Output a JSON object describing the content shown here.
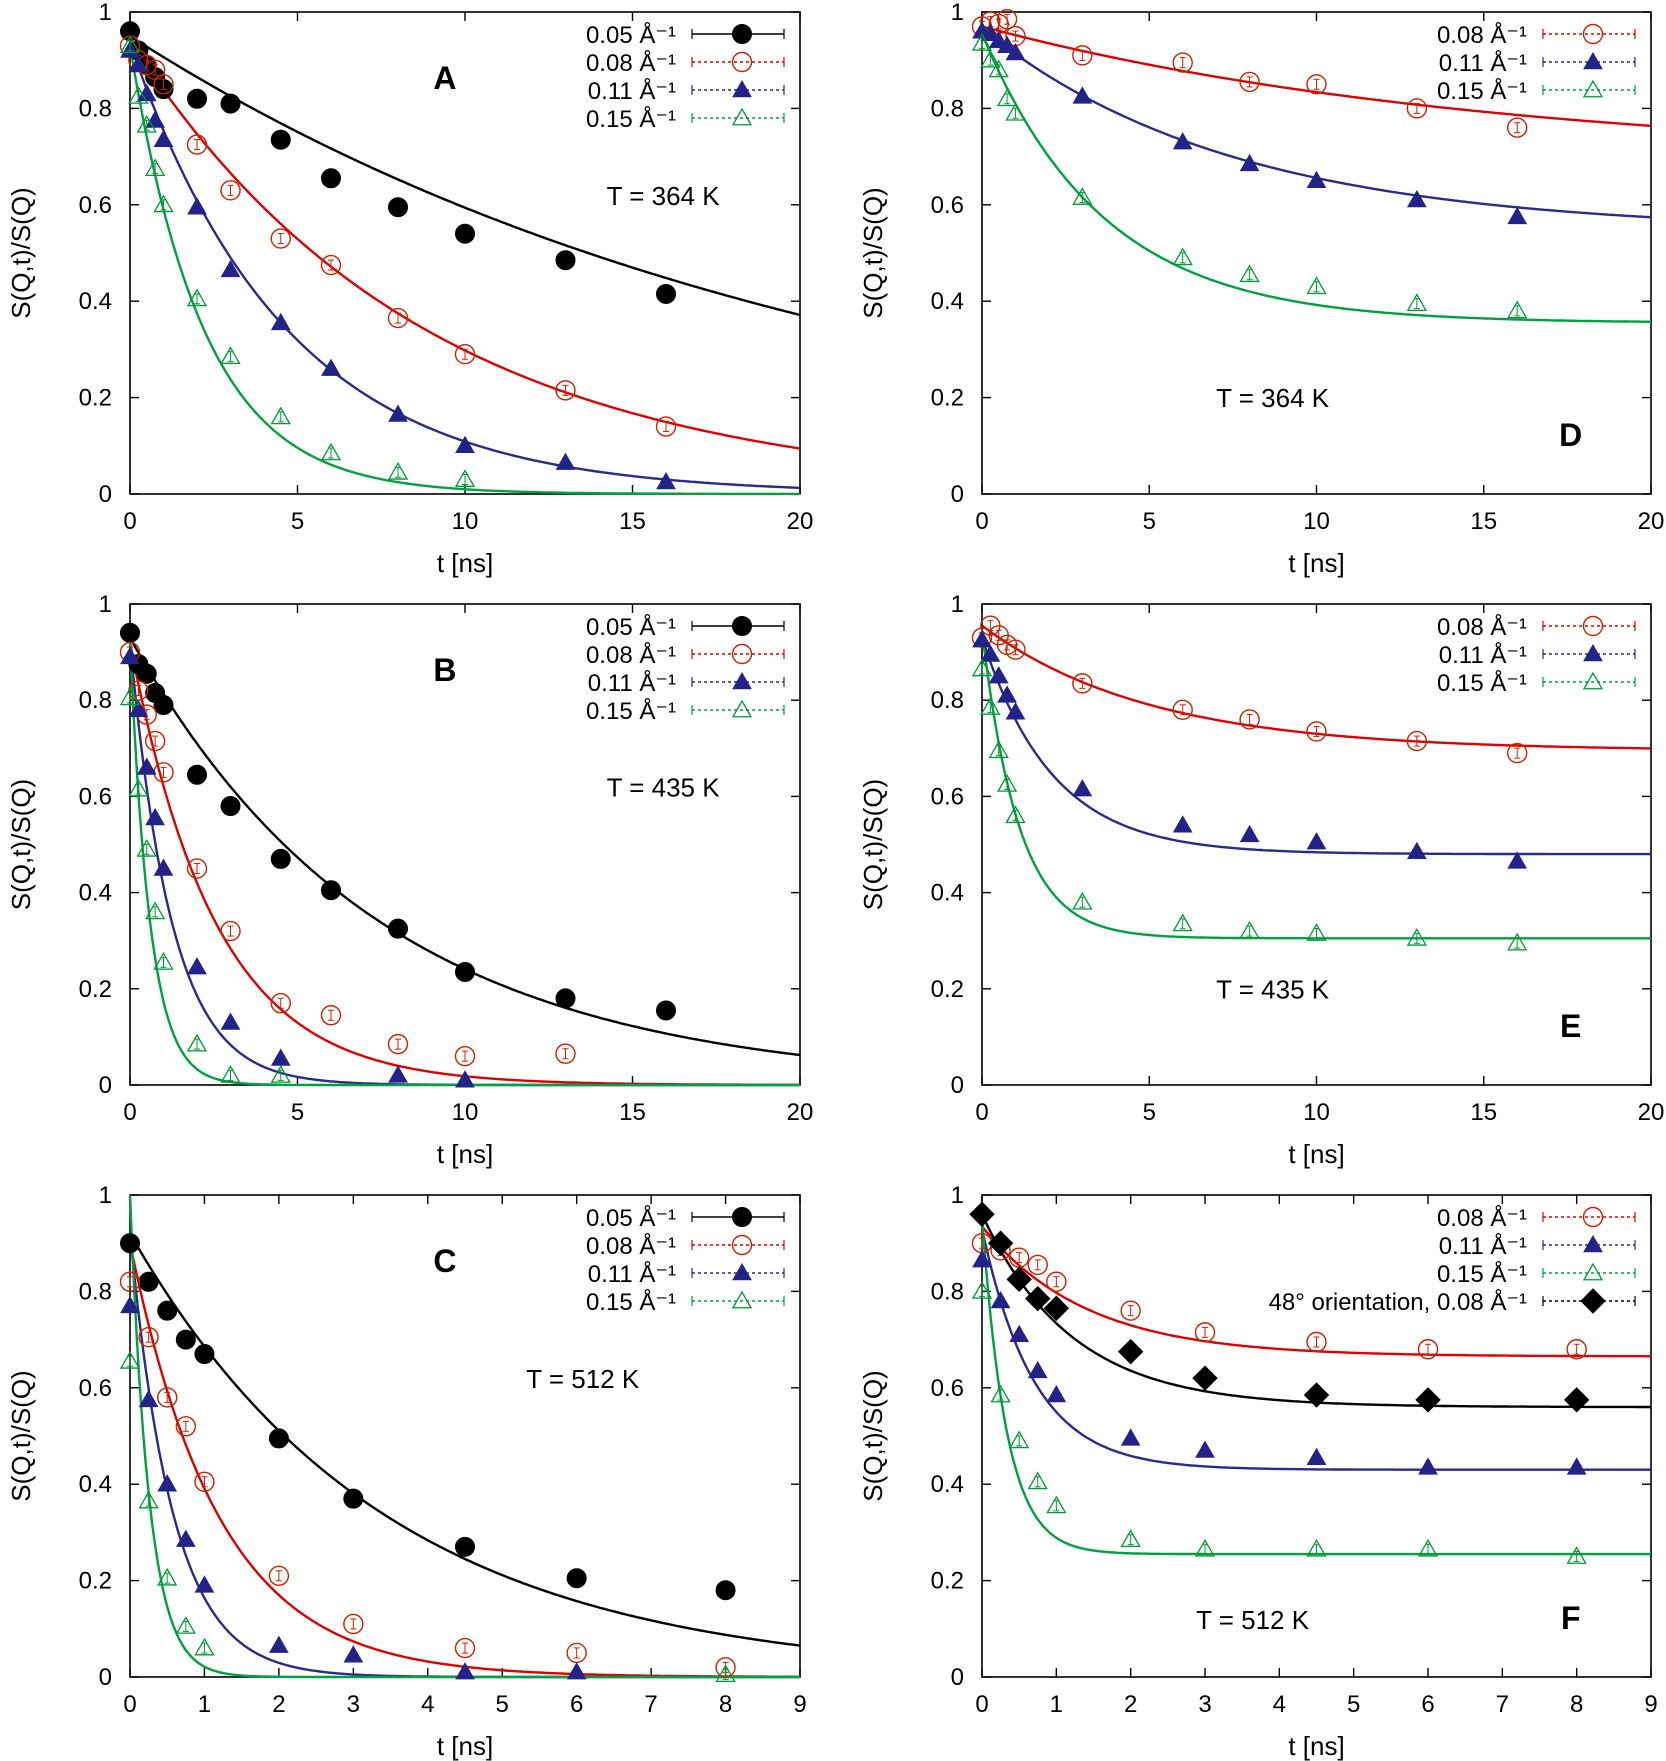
{
  "chart_data": [
    {
      "panel": "A",
      "type": "scatter",
      "title": "",
      "xlabel": "t [ns]",
      "ylabel": "S(Q,t)/S(Q)",
      "xlim": [
        0,
        20
      ],
      "ylim": [
        0,
        1
      ],
      "xticks": [
        0,
        5,
        10,
        15,
        20
      ],
      "yticks": [
        0,
        0.2,
        0.4,
        0.6,
        0.8,
        1
      ],
      "annotation": "T = 364 K",
      "legend_position": "top-right",
      "series": [
        {
          "name": "0.05 Å⁻¹",
          "marker": "filled-circle",
          "color": "#000000",
          "line_color": "#000000",
          "x": [
            0,
            0.25,
            0.5,
            0.75,
            1,
            2,
            3,
            4.5,
            6,
            8,
            10,
            13,
            16
          ],
          "y": [
            0.96,
            0.92,
            0.89,
            0.865,
            0.84,
            0.82,
            0.81,
            0.735,
            0.655,
            0.595,
            0.54,
            0.485,
            0.415
          ],
          "fit": {
            "A": 0.95,
            "tau": 21.3,
            "B": 0
          }
        },
        {
          "name": "0.08 Å⁻¹",
          "marker": "open-circle",
          "color": "#cc2200",
          "line_color": "#dd0000",
          "x": [
            0,
            0.25,
            0.5,
            0.75,
            1,
            2,
            3,
            4.5,
            6,
            8,
            10,
            13,
            16
          ],
          "y": [
            0.93,
            0.9,
            0.89,
            0.88,
            0.85,
            0.725,
            0.63,
            0.53,
            0.475,
            0.365,
            0.29,
            0.215,
            0.14
          ],
          "fit": {
            "A": 0.94,
            "tau": 8.7,
            "B": 0
          }
        },
        {
          "name": "0.11 Å⁻¹",
          "marker": "filled-triangle",
          "color": "#222288",
          "line_color": "#2a2a8a",
          "x": [
            0,
            0.25,
            0.5,
            0.75,
            1,
            2,
            3,
            4.5,
            6,
            8,
            10,
            13,
            16
          ],
          "y": [
            0.92,
            0.89,
            0.83,
            0.775,
            0.735,
            0.595,
            0.465,
            0.355,
            0.26,
            0.165,
            0.1,
            0.065,
            0.025
          ],
          "fit": {
            "A": 0.935,
            "tau": 4.65,
            "B": 0
          }
        },
        {
          "name": "0.15 Å⁻¹",
          "marker": "open-triangle",
          "color": "#009933",
          "line_color": "#00a040",
          "x": [
            0,
            0.25,
            0.5,
            0.75,
            1,
            2,
            3,
            4.5,
            6,
            8,
            10
          ],
          "y": [
            0.93,
            0.825,
            0.765,
            0.675,
            0.6,
            0.405,
            0.285,
            0.16,
            0.085,
            0.045,
            0.03
          ],
          "fit": {
            "A": 0.93,
            "tau": 2.2,
            "B": 0
          }
        }
      ]
    },
    {
      "panel": "D",
      "type": "scatter",
      "title": "",
      "xlabel": "t [ns]",
      "ylabel": "S(Q,t)/S(Q)",
      "xlim": [
        0,
        20
      ],
      "ylim": [
        0,
        1
      ],
      "xticks": [
        0,
        5,
        10,
        15,
        20
      ],
      "yticks": [
        0,
        0.2,
        0.4,
        0.6,
        0.8,
        1
      ],
      "annotation": "T = 364 K",
      "legend_position": "top-right",
      "series": [
        {
          "name": "0.08 Å⁻¹",
          "marker": "open-circle",
          "color": "#cc2200",
          "line_color": "#dd0000",
          "x": [
            0,
            0.25,
            0.5,
            0.75,
            1,
            3,
            6,
            8,
            10,
            13,
            16
          ],
          "y": [
            0.97,
            0.98,
            0.975,
            0.985,
            0.95,
            0.91,
            0.895,
            0.855,
            0.85,
            0.8,
            0.76
          ],
          "fit": {
            "A": 0.28,
            "tau": 15,
            "B": 0.69
          }
        },
        {
          "name": "0.11 Å⁻¹",
          "marker": "filled-triangle",
          "color": "#222288",
          "line_color": "#2a2a8a",
          "x": [
            0,
            0.25,
            0.5,
            0.75,
            1,
            3,
            6,
            8,
            10,
            13,
            16
          ],
          "y": [
            0.96,
            0.955,
            0.94,
            0.93,
            0.915,
            0.825,
            0.73,
            0.685,
            0.65,
            0.61,
            0.575
          ],
          "fit": {
            "A": 0.42,
            "tau": 7.5,
            "B": 0.545
          }
        },
        {
          "name": "0.15 Å⁻¹",
          "marker": "open-triangle",
          "color": "#009933",
          "line_color": "#00a040",
          "x": [
            0,
            0.25,
            0.5,
            0.75,
            1,
            3,
            6,
            8,
            10,
            13,
            16
          ],
          "y": [
            0.935,
            0.9,
            0.88,
            0.82,
            0.79,
            0.615,
            0.49,
            0.455,
            0.43,
            0.395,
            0.38
          ],
          "fit": {
            "A": 0.6,
            "tau": 3.6,
            "B": 0.355
          }
        }
      ]
    },
    {
      "panel": "B",
      "type": "scatter",
      "title": "",
      "xlabel": "t [ns]",
      "ylabel": "S(Q,t)/S(Q)",
      "xlim": [
        0,
        20
      ],
      "ylim": [
        0,
        1
      ],
      "xticks": [
        0,
        5,
        10,
        15,
        20
      ],
      "yticks": [
        0,
        0.2,
        0.4,
        0.6,
        0.8,
        1
      ],
      "annotation": "T = 435 K",
      "legend_position": "top-right",
      "series": [
        {
          "name": "0.05 Å⁻¹",
          "marker": "filled-circle",
          "color": "#000000",
          "line_color": "#000000",
          "x": [
            0,
            0.25,
            0.5,
            0.75,
            1,
            2,
            3,
            4.5,
            6,
            8,
            10,
            13,
            16
          ],
          "y": [
            0.94,
            0.875,
            0.855,
            0.815,
            0.79,
            0.645,
            0.58,
            0.47,
            0.405,
            0.325,
            0.235,
            0.18,
            0.155
          ],
          "fit": {
            "A": 0.93,
            "tau": 7.4,
            "B": 0
          }
        },
        {
          "name": "0.08 Å⁻¹",
          "marker": "open-circle",
          "color": "#cc2200",
          "line_color": "#dd0000",
          "x": [
            0,
            0.25,
            0.5,
            0.75,
            1,
            2,
            3,
            4.5,
            6,
            8,
            10,
            13
          ],
          "y": [
            0.9,
            0.82,
            0.77,
            0.715,
            0.65,
            0.45,
            0.32,
            0.17,
            0.145,
            0.085,
            0.06,
            0.065
          ],
          "fit": {
            "A": 0.92,
            "tau": 2.55,
            "B": 0
          }
        },
        {
          "name": "0.11 Å⁻¹",
          "marker": "filled-triangle",
          "color": "#222288",
          "line_color": "#2a2a8a",
          "x": [
            0,
            0.25,
            0.5,
            0.75,
            1,
            2,
            3,
            4.5,
            8,
            10
          ],
          "y": [
            0.89,
            0.78,
            0.66,
            0.555,
            0.45,
            0.245,
            0.13,
            0.055,
            0.02,
            0.01
          ],
          "fit": {
            "A": 0.92,
            "tau": 1.25,
            "B": 0
          }
        },
        {
          "name": "0.15 Å⁻¹",
          "marker": "open-triangle",
          "color": "#009933",
          "line_color": "#00a040",
          "x": [
            0,
            0.25,
            0.5,
            0.75,
            1,
            2,
            3,
            4.5
          ],
          "y": [
            0.805,
            0.615,
            0.49,
            0.36,
            0.255,
            0.085,
            0.02,
            0.02
          ],
          "fit": {
            "A": 0.92,
            "tau": 0.6,
            "B": 0
          }
        }
      ]
    },
    {
      "panel": "E",
      "type": "scatter",
      "title": "",
      "xlabel": "t [ns]",
      "ylabel": "S(Q,t)/S(Q)",
      "xlim": [
        0,
        20
      ],
      "ylim": [
        0,
        1
      ],
      "xticks": [
        0,
        5,
        10,
        15,
        20
      ],
      "yticks": [
        0,
        0.2,
        0.4,
        0.6,
        0.8,
        1
      ],
      "annotation": "T = 435 K",
      "legend_position": "top-right",
      "series": [
        {
          "name": "0.08 Å⁻¹",
          "marker": "open-circle",
          "color": "#cc2200",
          "line_color": "#dd0000",
          "x": [
            0,
            0.25,
            0.5,
            0.75,
            1,
            3,
            6,
            8,
            10,
            13,
            16
          ],
          "y": [
            0.93,
            0.955,
            0.935,
            0.915,
            0.905,
            0.835,
            0.78,
            0.76,
            0.735,
            0.715,
            0.69
          ],
          "fit": {
            "A": 0.26,
            "tau": 5,
            "B": 0.695
          }
        },
        {
          "name": "0.11 Å⁻¹",
          "marker": "filled-triangle",
          "color": "#222288",
          "line_color": "#2a2a8a",
          "x": [
            0,
            0.25,
            0.5,
            0.75,
            1,
            3,
            6,
            8,
            10,
            13,
            16
          ],
          "y": [
            0.925,
            0.895,
            0.85,
            0.81,
            0.775,
            0.615,
            0.54,
            0.52,
            0.505,
            0.485,
            0.465
          ],
          "fit": {
            "A": 0.45,
            "tau": 2.1,
            "B": 0.48
          }
        },
        {
          "name": "0.15 Å⁻¹",
          "marker": "open-triangle",
          "color": "#009933",
          "line_color": "#00a040",
          "x": [
            0,
            0.25,
            0.5,
            0.75,
            1,
            3,
            6,
            8,
            10,
            13,
            16
          ],
          "y": [
            0.865,
            0.785,
            0.695,
            0.625,
            0.56,
            0.38,
            0.335,
            0.32,
            0.315,
            0.305,
            0.295
          ],
          "fit": {
            "A": 0.64,
            "tau": 1.1,
            "B": 0.305
          }
        }
      ]
    },
    {
      "panel": "C",
      "type": "scatter",
      "title": "",
      "xlabel": "t [ns]",
      "ylabel": "S(Q,t)/S(Q)",
      "xlim": [
        0,
        9
      ],
      "ylim": [
        0,
        1
      ],
      "xticks": [
        0,
        1,
        2,
        3,
        4,
        5,
        6,
        7,
        8,
        9
      ],
      "yticks": [
        0,
        0.2,
        0.4,
        0.6,
        0.8,
        1
      ],
      "annotation": "T = 512 K",
      "legend_position": "top-right",
      "series": [
        {
          "name": "0.05 Å⁻¹",
          "marker": "filled-circle",
          "color": "#000000",
          "line_color": "#000000",
          "x": [
            0,
            0.25,
            0.5,
            0.75,
            1,
            2,
            3,
            4.5,
            6,
            8
          ],
          "y": [
            0.9,
            0.82,
            0.76,
            0.7,
            0.67,
            0.495,
            0.37,
            0.27,
            0.205,
            0.18
          ],
          "fit": {
            "A": 0.92,
            "tau": 3.4,
            "B": 0
          }
        },
        {
          "name": "0.08 Å⁻¹",
          "marker": "open-circle",
          "color": "#cc2200",
          "line_color": "#dd0000",
          "x": [
            0,
            0.25,
            0.5,
            0.75,
            1,
            2,
            3,
            4.5,
            6,
            8
          ],
          "y": [
            0.82,
            0.705,
            0.58,
            0.52,
            0.405,
            0.21,
            0.11,
            0.06,
            0.05,
            0.02
          ],
          "fit": {
            "A": 0.9,
            "tau": 1.2,
            "B": 0
          }
        },
        {
          "name": "0.11 Å⁻¹",
          "marker": "filled-triangle",
          "color": "#222288",
          "line_color": "#2a2a8a",
          "x": [
            0,
            0.25,
            0.5,
            0.75,
            1,
            2,
            3,
            4.5,
            6
          ],
          "y": [
            0.77,
            0.575,
            0.4,
            0.285,
            0.19,
            0.065,
            0.045,
            0.01,
            0.01
          ],
          "fit": {
            "A": 0.92,
            "tau": 0.58,
            "B": 0
          }
        },
        {
          "name": "0.15 Å⁻¹",
          "marker": "open-triangle",
          "color": "#009933",
          "line_color": "#00a040",
          "x": [
            0,
            0.25,
            0.5,
            0.75,
            1,
            8
          ],
          "y": [
            0.655,
            0.365,
            0.205,
            0.105,
            0.06,
            0.005
          ],
          "fit": {
            "A": 1.0,
            "tau": 0.26,
            "B": 0
          }
        }
      ]
    },
    {
      "panel": "F",
      "type": "scatter",
      "title": "",
      "xlabel": "t [ns]",
      "ylabel": "S(Q,t)/S(Q)",
      "xlim": [
        0,
        9
      ],
      "ylim": [
        0,
        1
      ],
      "xticks": [
        0,
        1,
        2,
        3,
        4,
        5,
        6,
        7,
        8,
        9
      ],
      "yticks": [
        0,
        0.2,
        0.4,
        0.6,
        0.8,
        1
      ],
      "annotation": "T = 512 K",
      "legend_position": "top-right",
      "series": [
        {
          "name": "0.08 Å⁻¹",
          "marker": "open-circle",
          "color": "#cc2200",
          "line_color": "#dd0000",
          "x": [
            0,
            0.25,
            0.5,
            0.75,
            1,
            2,
            3,
            4.5,
            6,
            8
          ],
          "y": [
            0.9,
            0.885,
            0.87,
            0.855,
            0.82,
            0.76,
            0.715,
            0.695,
            0.68,
            0.68
          ],
          "fit": {
            "A": 0.27,
            "tau": 1.4,
            "B": 0.665
          }
        },
        {
          "name": "0.11 Å⁻¹",
          "marker": "filled-triangle",
          "color": "#222288",
          "line_color": "#2a2a8a",
          "x": [
            0,
            0.25,
            0.5,
            0.75,
            1,
            2,
            3,
            4.5,
            6,
            8
          ],
          "y": [
            0.865,
            0.78,
            0.71,
            0.635,
            0.585,
            0.495,
            0.47,
            0.455,
            0.435,
            0.435
          ],
          "fit": {
            "A": 0.5,
            "tau": 0.7,
            "B": 0.43
          }
        },
        {
          "name": "0.15 Å⁻¹",
          "marker": "open-triangle",
          "color": "#009933",
          "line_color": "#00a040",
          "x": [
            0,
            0.25,
            0.5,
            0.75,
            1,
            2,
            3,
            4.5,
            6,
            8
          ],
          "y": [
            0.8,
            0.585,
            0.49,
            0.405,
            0.355,
            0.285,
            0.265,
            0.265,
            0.265,
            0.25
          ],
          "fit": {
            "A": 0.7,
            "tau": 0.33,
            "B": 0.255
          }
        },
        {
          "name": "48° orientation, 0.08 Å⁻¹",
          "marker": "filled-diamond",
          "color": "#000000",
          "line_color": "#000000",
          "x": [
            0,
            0.25,
            0.5,
            0.75,
            1,
            2,
            3,
            4.5,
            6,
            8
          ],
          "y": [
            0.96,
            0.9,
            0.825,
            0.785,
            0.765,
            0.675,
            0.62,
            0.585,
            0.575,
            0.575
          ],
          "fit": {
            "A": 0.4,
            "tau": 1.2,
            "B": 0.56
          }
        }
      ]
    }
  ]
}
